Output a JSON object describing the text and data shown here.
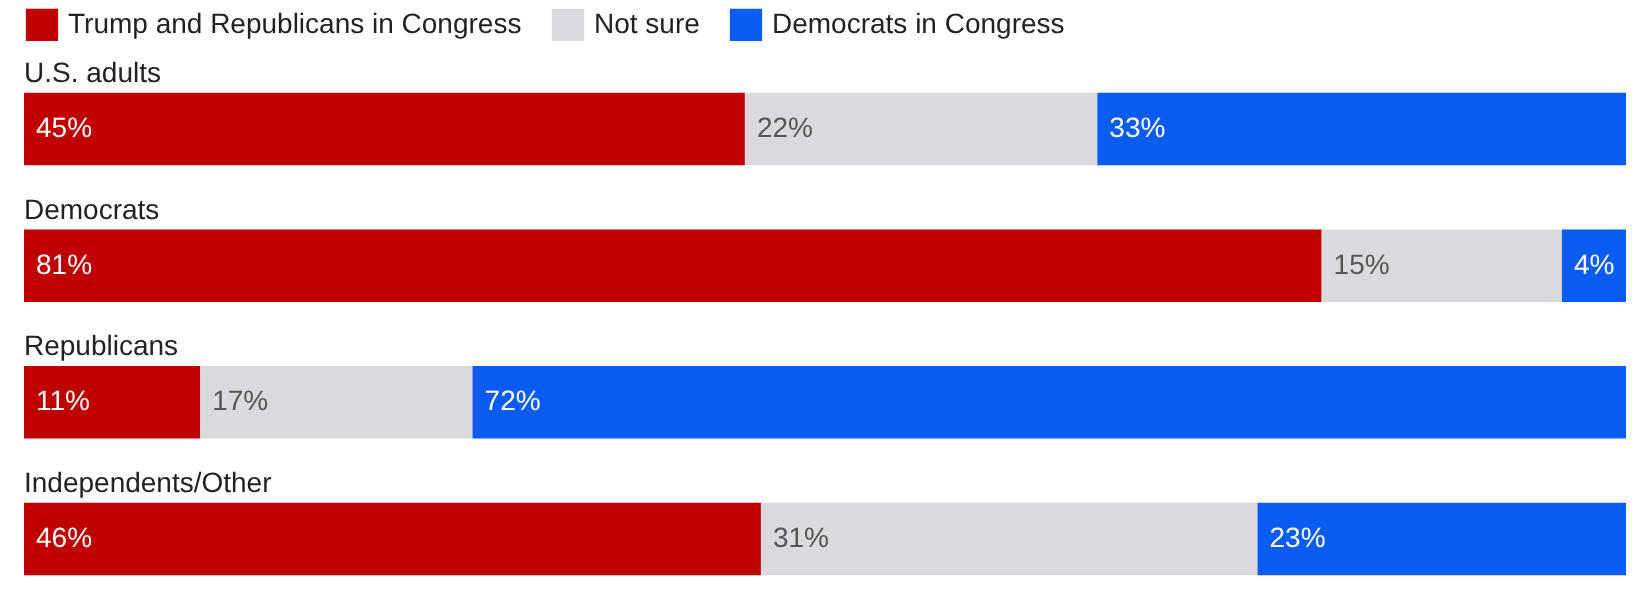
{
  "chart_data": {
    "type": "bar",
    "orientation": "horizontal",
    "stacked": true,
    "legend": "top left",
    "tick_labels": "y",
    "categories": [
      "U.S. adults",
      "Democrats",
      "Republicans",
      "Independents/Other"
    ],
    "series": [
      {
        "name": "Trump and Republicans in Congress",
        "color": "#c00000",
        "values": [
          45,
          81,
          11,
          46
        ],
        "value_labels": [
          "45%",
          "81%",
          "11%",
          "46%"
        ]
      },
      {
        "name": "Not sure",
        "color": "#d9d9de",
        "values": [
          22,
          15,
          17,
          31
        ],
        "value_labels": [
          "22%",
          "15%",
          "17%",
          "31%"
        ]
      },
      {
        "name": "Democrats in Congress",
        "color": "#0b5cf5",
        "values": [
          33,
          4,
          72,
          23
        ],
        "value_labels": [
          "33%",
          "4%",
          "72%",
          "23%"
        ]
      }
    ]
  }
}
